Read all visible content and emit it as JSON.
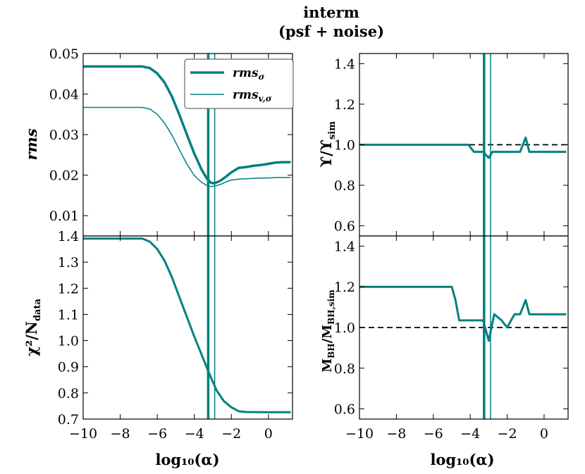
{
  "title": "interm",
  "subtitle": "(psf + noise)",
  "colors": {
    "teal": "#008080",
    "dashed": "#000000"
  },
  "chart_data": [
    {
      "id": "rms",
      "type": "line",
      "ylabel": "rms",
      "xlim": [
        -10,
        1.3
      ],
      "ylim": [
        0.005,
        0.05
      ],
      "yticks": [
        0.01,
        0.02,
        0.03,
        0.04,
        0.05
      ],
      "ytick_labels": [
        "0.01",
        "0.02",
        "0.03",
        "0.04",
        "0.05"
      ],
      "xticks": [
        -10,
        -8,
        -6,
        -4,
        -2,
        0
      ],
      "show_xticklabels": false,
      "legend": {
        "position": "top-right",
        "entries": [
          {
            "label": "rms",
            "sub": "σ",
            "width": 3.5
          },
          {
            "label": "rms",
            "sub": "v,σ",
            "width": 1.5
          }
        ]
      },
      "series": [
        {
          "name": "rms_σ",
          "width": 3.5,
          "x": [
            -10,
            -6.8,
            -6.4,
            -6.0,
            -5.6,
            -5.2,
            -4.8,
            -4.4,
            -4.0,
            -3.6,
            -3.3,
            -3.1,
            -2.9,
            -2.6,
            -2.3,
            -2.0,
            -1.6,
            -1.2,
            -0.8,
            -0.4,
            0,
            0.4,
            0.8,
            1.2
          ],
          "y": [
            0.0468,
            0.0468,
            0.0464,
            0.0451,
            0.0428,
            0.0393,
            0.0348,
            0.03,
            0.0253,
            0.0213,
            0.019,
            0.0181,
            0.018,
            0.0186,
            0.0196,
            0.0207,
            0.0218,
            0.022,
            0.0223,
            0.0225,
            0.0228,
            0.0231,
            0.0232,
            0.0232
          ]
        },
        {
          "name": "rms_v,σ",
          "width": 1.5,
          "x": [
            -10,
            -6.8,
            -6.4,
            -6.0,
            -5.6,
            -5.2,
            -4.8,
            -4.4,
            -4.0,
            -3.6,
            -3.3,
            -3.1,
            -2.9,
            -2.6,
            -2.3,
            -2.0,
            -1.6,
            -1.2,
            -0.8,
            -0.4,
            0,
            0.4,
            0.8,
            1.2
          ],
          "y": [
            0.0367,
            0.0367,
            0.0363,
            0.035,
            0.0328,
            0.0298,
            0.0262,
            0.0227,
            0.0199,
            0.0182,
            0.0174,
            0.0172,
            0.0173,
            0.0177,
            0.0183,
            0.0188,
            0.019,
            0.0191,
            0.0192,
            0.0193,
            0.0193,
            0.0194,
            0.0194,
            0.0194
          ]
        }
      ],
      "vlines": [
        {
          "x": -3.25,
          "width": 3.5
        },
        {
          "x": -2.9,
          "width": 1.5
        }
      ]
    },
    {
      "id": "upsilon",
      "type": "line",
      "ylabel": "ϒ/ϒ",
      "ylabel_sub": "sim",
      "xlim": [
        -10,
        1.3
      ],
      "ylim": [
        0.55,
        1.45
      ],
      "yticks": [
        0.6,
        0.8,
        1.0,
        1.2,
        1.4
      ],
      "ytick_labels": [
        "0.6",
        "0.8",
        "1.0",
        "1.2",
        "1.4"
      ],
      "xticks": [
        -10,
        -8,
        -6,
        -4,
        -2,
        0
      ],
      "show_xticklabels": false,
      "hline": 1.0,
      "series": [
        {
          "name": "ϒ/ϒ_sim",
          "width": 3.0,
          "x": [
            -10,
            -4.1,
            -3.8,
            -3.3,
            -3.0,
            -2.8,
            -2.5,
            -1.3,
            -1.0,
            -0.8,
            -0.6,
            1.2
          ],
          "y": [
            1.0,
            1.0,
            0.965,
            0.965,
            0.935,
            0.965,
            0.965,
            0.965,
            1.035,
            0.965,
            0.965,
            0.965
          ]
        }
      ],
      "vlines": [
        {
          "x": -3.25,
          "width": 3.5
        },
        {
          "x": -2.9,
          "width": 1.5
        }
      ]
    },
    {
      "id": "chi2",
      "type": "line",
      "ylabel": "χ²/N",
      "ylabel_sub": "data",
      "xlabel": "log₁₀(α)",
      "xlim": [
        -10,
        1.3
      ],
      "ylim": [
        0.7,
        1.4
      ],
      "yticks": [
        0.7,
        0.8,
        0.9,
        1.0,
        1.1,
        1.2,
        1.3,
        1.4
      ],
      "ytick_labels": [
        "0.7",
        "0.8",
        "0.9",
        "1.0",
        "1.1",
        "1.2",
        "1.3",
        "1.4"
      ],
      "xticks": [
        -10,
        -8,
        -6,
        -4,
        -2,
        0
      ],
      "xtick_labels": [
        "−10",
        "−8",
        "−6",
        "−4",
        "−2",
        "0"
      ],
      "show_xticklabels": true,
      "series": [
        {
          "name": "χ²/N_data",
          "width": 3.0,
          "x": [
            -10,
            -6.8,
            -6.4,
            -6.0,
            -5.6,
            -5.2,
            -4.8,
            -4.4,
            -4.0,
            -3.6,
            -3.2,
            -2.8,
            -2.4,
            -2.0,
            -1.6,
            -1.2,
            0,
            1.2
          ],
          "y": [
            1.39,
            1.39,
            1.378,
            1.35,
            1.305,
            1.24,
            1.165,
            1.09,
            1.015,
            0.945,
            0.875,
            0.81,
            0.768,
            0.745,
            0.73,
            0.727,
            0.726,
            0.726
          ]
        }
      ],
      "vlines": [
        {
          "x": -3.25,
          "width": 3.5
        },
        {
          "x": -2.9,
          "width": 1.5
        }
      ]
    },
    {
      "id": "mbh",
      "type": "line",
      "ylabel": "M",
      "ylabel_sub": "BH",
      "ylabel_mid": "/M",
      "ylabel_sub2": "BH,sim",
      "xlabel": "log₁₀(α)",
      "xlim": [
        -10,
        1.3
      ],
      "ylim": [
        0.55,
        1.45
      ],
      "yticks": [
        0.6,
        0.8,
        1.0,
        1.2,
        1.4
      ],
      "ytick_labels": [
        "0.6",
        "0.8",
        "1.0",
        "1.2",
        "1.4"
      ],
      "xticks": [
        -10,
        -8,
        -6,
        -4,
        -2,
        0
      ],
      "xtick_labels": [
        "−10",
        "−8",
        "−6",
        "−4",
        "−2",
        "0"
      ],
      "show_xticklabels": true,
      "hline": 1.0,
      "series": [
        {
          "name": "M_BH/M_BH,sim",
          "width": 3.0,
          "x": [
            -10,
            -5.0,
            -4.8,
            -4.6,
            -4.2,
            -3.3,
            -3.0,
            -2.7,
            -2.3,
            -2.0,
            -1.6,
            -1.3,
            -1.0,
            -0.8,
            1.2
          ],
          "y": [
            1.2,
            1.2,
            1.135,
            1.035,
            1.035,
            1.035,
            0.935,
            1.065,
            1.035,
            1.0,
            1.065,
            1.065,
            1.135,
            1.065,
            1.065
          ]
        }
      ],
      "vlines": [
        {
          "x": -3.25,
          "width": 3.5
        },
        {
          "x": -2.9,
          "width": 1.5
        }
      ]
    }
  ]
}
